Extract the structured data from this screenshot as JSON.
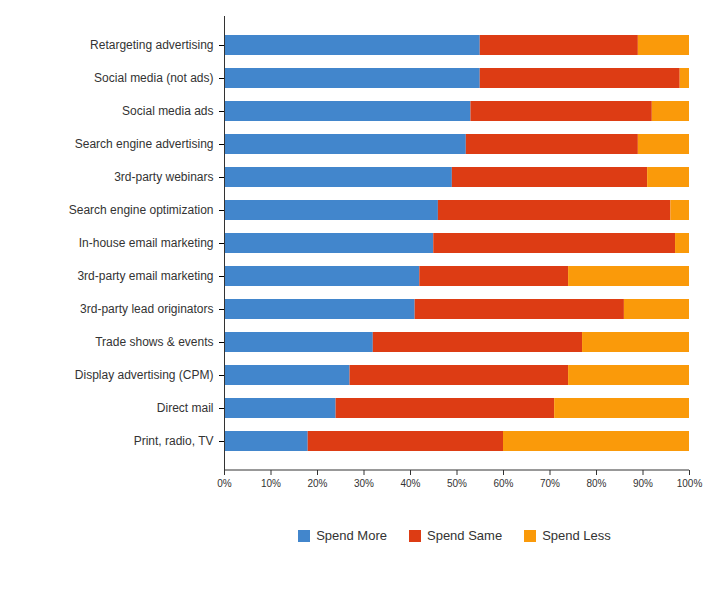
{
  "chart_data": {
    "type": "bar",
    "orientation": "horizontal",
    "stacked": true,
    "grid": false,
    "categories": [
      "Retargeting advertising",
      "Social media (not ads)",
      "Social media ads",
      "Search engine advertising",
      "3rd-party webinars",
      "Search engine optimization",
      "In-house email marketing",
      "3rd-party email marketing",
      "3rd-party lead originators",
      "Trade shows & events",
      "Display advertising (CPM)",
      "Direct mail",
      "Print, radio, TV"
    ],
    "series": [
      {
        "name": "Spend More",
        "color": "#4286cc",
        "values": [
          55,
          55,
          53,
          52,
          49,
          46,
          45,
          42,
          41,
          32,
          27,
          24,
          18
        ]
      },
      {
        "name": "Spend Same",
        "color": "#dd3c14",
        "values": [
          34,
          43,
          39,
          37,
          42,
          50,
          52,
          32,
          45,
          45,
          47,
          47,
          42
        ]
      },
      {
        "name": "Spend Less",
        "color": "#fa9a0a",
        "values": [
          11,
          2,
          8,
          11,
          9,
          4,
          3,
          26,
          14,
          23,
          26,
          29,
          40
        ]
      }
    ],
    "xlim": [
      0,
      100
    ],
    "xticks": [
      {
        "value": 0,
        "label": "0%"
      },
      {
        "value": 10,
        "label": "10%"
      },
      {
        "value": 20,
        "label": "20%"
      },
      {
        "value": 30,
        "label": "30%"
      },
      {
        "value": 40,
        "label": "40%"
      },
      {
        "value": 50,
        "label": "50%"
      },
      {
        "value": 60,
        "label": "60%"
      },
      {
        "value": 70,
        "label": "70%"
      },
      {
        "value": 80,
        "label": "80%"
      },
      {
        "value": 90,
        "label": "90%"
      },
      {
        "value": 100,
        "label": "100%"
      }
    ],
    "legend": "bottom"
  }
}
